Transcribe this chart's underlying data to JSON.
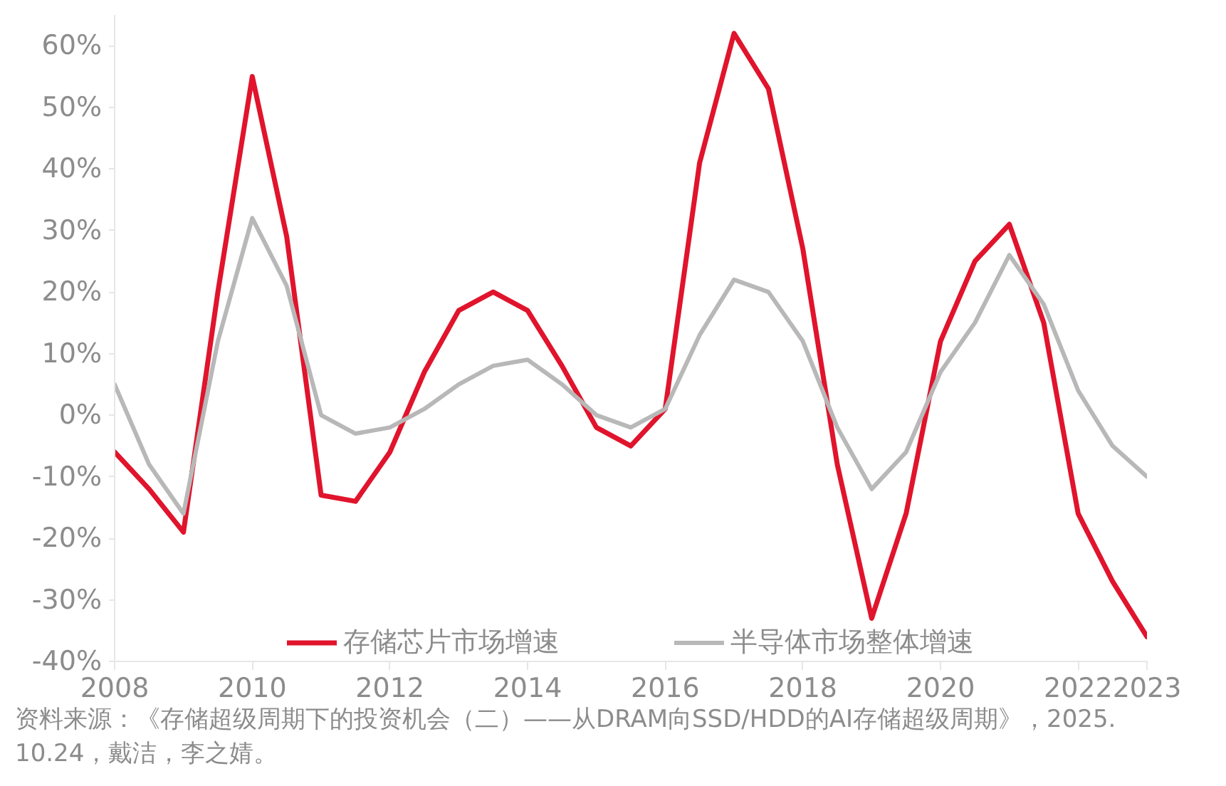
{
  "chart_data": {
    "type": "line",
    "x": [
      2008,
      2008.5,
      2009,
      2009.5,
      2010,
      2010.5,
      2011,
      2011.5,
      2012,
      2012.5,
      2013,
      2013.5,
      2014,
      2014.5,
      2015,
      2015.5,
      2016,
      2016.5,
      2017,
      2017.5,
      2018,
      2018.5,
      2019,
      2019.5,
      2020,
      2020.5,
      2021,
      2021.5,
      2022,
      2022.5,
      2023
    ],
    "series": [
      {
        "name": "存储芯片市场增速",
        "color": "#e0142c",
        "values": [
          -6,
          -12,
          -19,
          20,
          55,
          29,
          -13,
          -14,
          -6,
          7,
          17,
          20,
          17,
          8,
          -2,
          -5,
          1,
          41,
          62,
          53,
          27,
          -8,
          -33,
          -16,
          12,
          25,
          31,
          15,
          -16,
          -27,
          -36
        ]
      },
      {
        "name": "半导体市场整体增速",
        "color": "#b8b8b8",
        "values": [
          5,
          -8,
          -16,
          12,
          32,
          21,
          0,
          -3,
          -2,
          1,
          5,
          8,
          9,
          5,
          0,
          -2,
          1,
          13,
          22,
          20,
          12,
          -2,
          -12,
          -6,
          7,
          15,
          26,
          18,
          4,
          -5,
          -10
        ]
      }
    ],
    "xlim": [
      2008,
      2023
    ],
    "xticks": [
      2008,
      2010,
      2012,
      2014,
      2016,
      2018,
      2020,
      2022,
      2023
    ],
    "ylim": [
      -40,
      65
    ],
    "yticks": [
      {
        "value": -40,
        "label": "-40%"
      },
      {
        "value": -30,
        "label": "-30%"
      },
      {
        "value": -20,
        "label": "-20%"
      },
      {
        "value": -10,
        "label": "-10%"
      },
      {
        "value": 0,
        "label": "0%"
      },
      {
        "value": 10,
        "label": "10%"
      },
      {
        "value": 20,
        "label": "20%"
      },
      {
        "value": 30,
        "label": "30%"
      },
      {
        "value": 40,
        "label": "40%"
      },
      {
        "value": 50,
        "label": "50%"
      },
      {
        "value": 60,
        "label": "60%"
      }
    ],
    "grid": false,
    "legend": "bottom",
    "line_style": "solid",
    "annotations": [
      "资料来源：《存储超级周期下的投资机会（二）——从DRAM向SSD/HDD的AI存储超级周期》，2025.10.24，戴洁，李之婧。"
    ]
  }
}
